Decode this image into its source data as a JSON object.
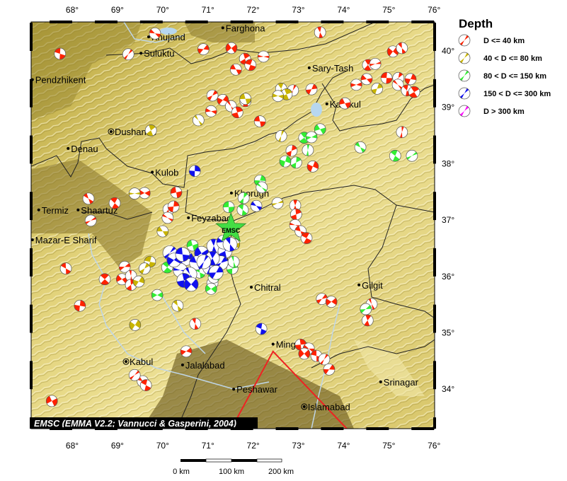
{
  "map": {
    "lon_range": [
      67.1,
      76.0
    ],
    "lat_range": [
      33.3,
      40.5
    ],
    "lon_ticks": [
      {
        "v": 68,
        "label": "68°"
      },
      {
        "v": 69,
        "label": "69°"
      },
      {
        "v": 70,
        "label": "70°"
      },
      {
        "v": 71,
        "label": "71°"
      },
      {
        "v": 72,
        "label": "72°"
      },
      {
        "v": 73,
        "label": "73°"
      },
      {
        "v": 74,
        "label": "74°"
      },
      {
        "v": 75,
        "label": "75°"
      },
      {
        "v": 76,
        "label": "76°"
      }
    ],
    "lat_ticks": [
      {
        "v": 40,
        "label": "40°"
      },
      {
        "v": 39,
        "label": "39°"
      },
      {
        "v": 38,
        "label": "38°"
      },
      {
        "v": 37,
        "label": "37°"
      },
      {
        "v": 36,
        "label": "36°"
      },
      {
        "v": 35,
        "label": "35°"
      },
      {
        "v": 34,
        "label": "34°"
      }
    ],
    "credit": "EMSC (EMMA V2.2; Vannucci & Gasperini, 2004)",
    "epicenter": {
      "label": "EMSC",
      "lon": 71.51,
      "lat": 36.85,
      "color": "#44dd44"
    },
    "fault_triangle": [
      [
        71.52,
        33.3
      ],
      [
        72.44,
        34.67
      ],
      [
        74.07,
        33.3
      ]
    ],
    "triangle_color": "#ee2222"
  },
  "cities": [
    {
      "name": "Khujand",
      "lon": 69.69,
      "lat": 40.25,
      "capital": false
    },
    {
      "name": "Suluktu",
      "lon": 69.52,
      "lat": 39.96,
      "capital": false
    },
    {
      "name": "Farghona",
      "lon": 71.33,
      "lat": 40.41,
      "capital": false
    },
    {
      "name": "Pendzhikent",
      "lon": 67.12,
      "lat": 39.49,
      "capital": false
    },
    {
      "name": "Sary-Tash",
      "lon": 73.24,
      "lat": 39.7,
      "capital": false
    },
    {
      "name": "Karakul",
      "lon": 73.63,
      "lat": 39.06,
      "capital": false
    },
    {
      "name": "Dushanbe",
      "lon": 68.86,
      "lat": 38.57,
      "capital": true
    },
    {
      "name": "Denau",
      "lon": 67.91,
      "lat": 38.27,
      "capital": false
    },
    {
      "name": "Kulob",
      "lon": 69.77,
      "lat": 37.85,
      "capital": false
    },
    {
      "name": "Termiz",
      "lon": 67.26,
      "lat": 37.18,
      "capital": false
    },
    {
      "name": "Shaartuz",
      "lon": 68.13,
      "lat": 37.18,
      "capital": false
    },
    {
      "name": "Khorugh",
      "lon": 71.52,
      "lat": 37.48,
      "capital": false
    },
    {
      "name": "Feyzabad",
      "lon": 70.57,
      "lat": 37.04,
      "capital": false
    },
    {
      "name": "Mazar-E Sharif",
      "lon": 67.12,
      "lat": 36.65,
      "capital": false
    },
    {
      "name": "Chitral",
      "lon": 71.96,
      "lat": 35.81,
      "capital": false
    },
    {
      "name": "Gilgit",
      "lon": 74.34,
      "lat": 35.85,
      "capital": false
    },
    {
      "name": "Mingora",
      "lon": 72.44,
      "lat": 34.8,
      "capital": false
    },
    {
      "name": "Jalalabad",
      "lon": 70.44,
      "lat": 34.43,
      "capital": false
    },
    {
      "name": "Kabul",
      "lon": 69.19,
      "lat": 34.49,
      "capital": true
    },
    {
      "name": "Peshawar",
      "lon": 71.57,
      "lat": 34.0,
      "capital": false
    },
    {
      "name": "Islamabad",
      "lon": 73.13,
      "lat": 33.69,
      "capital": true
    },
    {
      "name": "Srinagar",
      "lon": 74.82,
      "lat": 34.13,
      "capital": false
    }
  ],
  "legend": {
    "title": "Depth",
    "items": [
      {
        "key": "d40",
        "label": "D <= 40 km",
        "color": "#ff2200"
      },
      {
        "key": "d80",
        "label": "40 < D <= 80 km",
        "color": "#c8b400"
      },
      {
        "key": "d150",
        "label": "80 < D <= 150 km",
        "color": "#33ee33"
      },
      {
        "key": "d300",
        "label": "150 < D <= 300 km",
        "color": "#1010ee"
      },
      {
        "key": "deep",
        "label": "D > 300 km",
        "color": "#ff00ff"
      }
    ]
  },
  "scale_bar": {
    "labels": [
      "0 km",
      "100 km",
      "200 km"
    ]
  },
  "earthquakes": {
    "d40": [
      [
        69.83,
        40.31
      ],
      [
        67.73,
        39.95
      ],
      [
        69.24,
        39.94
      ],
      [
        70.9,
        40.03
      ],
      [
        71.52,
        40.05
      ],
      [
        73.48,
        40.33
      ],
      [
        71.82,
        39.86
      ],
      [
        72.23,
        39.9
      ],
      [
        71.62,
        39.67
      ],
      [
        71.94,
        39.75
      ],
      [
        71.1,
        39.21
      ],
      [
        71.33,
        39.13
      ],
      [
        71.51,
        39.02
      ],
      [
        71.83,
        39.11
      ],
      [
        71.65,
        38.91
      ],
      [
        71.07,
        38.93
      ],
      [
        72.15,
        38.75
      ],
      [
        72.88,
        39.3
      ],
      [
        73.29,
        39.32
      ],
      [
        75.09,
        39.99
      ],
      [
        75.29,
        40.05
      ],
      [
        74.54,
        39.75
      ],
      [
        74.7,
        39.77
      ],
      [
        74.51,
        39.5
      ],
      [
        74.95,
        39.52
      ],
      [
        75.21,
        39.52
      ],
      [
        75.48,
        39.5
      ],
      [
        75.2,
        39.4
      ],
      [
        75.4,
        39.3
      ],
      [
        75.56,
        39.27
      ],
      [
        74.28,
        39.4
      ],
      [
        74.03,
        39.07
      ],
      [
        75.29,
        38.56
      ],
      [
        72.85,
        38.23
      ],
      [
        73.32,
        37.95
      ],
      [
        68.36,
        37.38
      ],
      [
        68.94,
        37.3
      ],
      [
        68.41,
        36.99
      ],
      [
        69.6,
        37.48
      ],
      [
        70.3,
        37.49
      ],
      [
        70.13,
        37.19
      ],
      [
        70.24,
        37.24
      ],
      [
        70.11,
        37.04
      ],
      [
        67.86,
        36.14
      ],
      [
        68.72,
        35.95
      ],
      [
        69.16,
        36.17
      ],
      [
        69.1,
        35.95
      ],
      [
        69.3,
        36.01
      ],
      [
        69.3,
        35.85
      ],
      [
        68.17,
        35.48
      ],
      [
        69.56,
        34.14
      ],
      [
        69.63,
        34.07
      ],
      [
        69.38,
        34.25
      ],
      [
        70.52,
        34.67
      ],
      [
        67.55,
        33.79
      ],
      [
        72.93,
        37.26
      ],
      [
        72.95,
        37.1
      ],
      [
        72.93,
        36.91
      ],
      [
        73.05,
        36.8
      ],
      [
        73.18,
        36.68
      ],
      [
        73.52,
        35.6
      ],
      [
        73.73,
        35.55
      ],
      [
        74.62,
        35.51
      ],
      [
        74.53,
        35.22
      ],
      [
        73.05,
        34.79
      ],
      [
        73.23,
        34.72
      ],
      [
        73.4,
        34.59
      ],
      [
        73.57,
        34.53
      ],
      [
        73.68,
        34.35
      ],
      [
        73.13,
        34.63
      ],
      [
        70.72,
        35.16
      ]
    ],
    "d80": [
      [
        69.74,
        38.59
      ],
      [
        69.38,
        37.47
      ],
      [
        70.0,
        36.8
      ],
      [
        69.72,
        36.26
      ],
      [
        69.6,
        36.14
      ],
      [
        69.47,
        35.91
      ],
      [
        70.79,
        38.77
      ],
      [
        72.62,
        39.33
      ],
      [
        72.74,
        39.23
      ],
      [
        72.55,
        39.2
      ],
      [
        71.83,
        39.15
      ],
      [
        72.62,
        38.49
      ],
      [
        74.74,
        39.33
      ],
      [
        69.39,
        35.14
      ],
      [
        70.33,
        35.48
      ],
      [
        71.1,
        35.88
      ],
      [
        72.54,
        37.3
      ],
      [
        71.58,
        36.57
      ]
    ],
    "d150": [
      [
        71.46,
        37.23
      ],
      [
        71.79,
        37.39
      ],
      [
        72.15,
        37.7
      ],
      [
        72.19,
        37.58
      ],
      [
        71.77,
        37.18
      ],
      [
        73.13,
        38.46
      ],
      [
        73.29,
        38.47
      ],
      [
        73.48,
        38.61
      ],
      [
        73.21,
        38.24
      ],
      [
        72.95,
        38.02
      ],
      [
        72.71,
        38.04
      ],
      [
        74.37,
        38.29
      ],
      [
        75.14,
        38.14
      ],
      [
        75.51,
        38.14
      ],
      [
        69.88,
        35.67
      ],
      [
        70.66,
        36.55
      ],
      [
        71.29,
        36.36
      ],
      [
        71.54,
        36.14
      ],
      [
        71.13,
        35.98
      ],
      [
        70.82,
        36.07
      ],
      [
        70.1,
        36.16
      ],
      [
        74.49,
        35.42
      ],
      [
        71.07,
        35.78
      ],
      [
        71.57,
        36.26
      ],
      [
        70.63,
        35.88
      ]
    ],
    "d300": [
      [
        70.71,
        37.87
      ],
      [
        72.07,
        37.25
      ],
      [
        72.18,
        35.07
      ],
      [
        70.16,
        36.42
      ],
      [
        70.52,
        36.32
      ],
      [
        70.86,
        36.41
      ],
      [
        71.13,
        36.54
      ],
      [
        71.38,
        36.45
      ],
      [
        70.39,
        36.11
      ],
      [
        70.75,
        36.24
      ],
      [
        71.04,
        36.16
      ],
      [
        71.29,
        36.24
      ],
      [
        70.25,
        36.29
      ],
      [
        70.6,
        36.04
      ],
      [
        71.1,
        36.32
      ],
      [
        70.47,
        35.93
      ],
      [
        71.35,
        36.61
      ],
      [
        70.44,
        36.39
      ],
      [
        70.91,
        36.26
      ],
      [
        71.18,
        36.07
      ],
      [
        70.63,
        35.86
      ],
      [
        71.49,
        36.57
      ]
    ],
    "deep": []
  }
}
